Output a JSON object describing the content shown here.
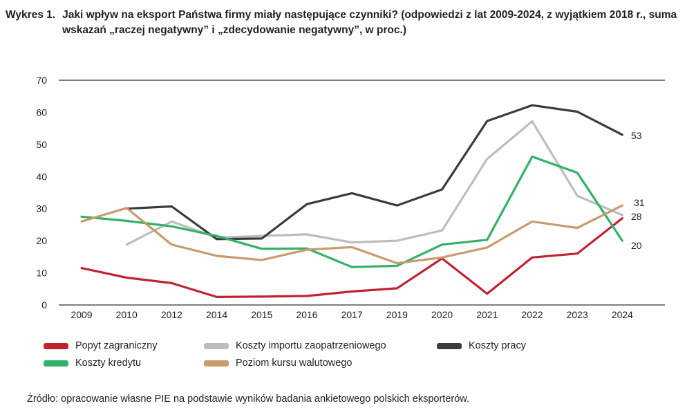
{
  "title": {
    "number": "Wykres 1.",
    "text": "Jaki wpływ na eksport Państwa firmy miały następujące czynniki? (odpowiedzi z lat 2009-2024, z wyjątkiem 2018 r., suma wskazań „raczej negatywny” i „zdecydowanie negatywny”, w proc.)"
  },
  "source": "Źródło: opracowanie własne PIE na podstawie wyników badania ankietowego polskich eksporterów.",
  "chart_data": {
    "type": "line",
    "categories": [
      "2009",
      "2010",
      "2012",
      "2014",
      "2015",
      "2016",
      "2017",
      "2019",
      "2020",
      "2021",
      "2022",
      "2023",
      "2024"
    ],
    "ylim": [
      0,
      70
    ],
    "yticks": [
      "0",
      "10",
      "20",
      "30",
      "40",
      "50",
      "60",
      "70"
    ],
    "grid": "top line only",
    "legend_position": "bottom",
    "series": [
      {
        "name": "Popyt zagraniczny",
        "color": "#c0232f",
        "values": [
          11.5,
          8.5,
          6.8,
          2.5,
          2.6,
          2.8,
          4.2,
          5.2,
          14.5,
          3.5,
          14.8,
          16,
          27
        ]
      },
      {
        "name": "Koszty importu zaopatrzeniowego",
        "color": "#bdbdbd",
        "values": [
          null,
          18.8,
          26,
          21,
          21.5,
          22,
          19.5,
          20,
          23.2,
          45.5,
          57.2,
          34,
          28
        ]
      },
      {
        "name": "Koszty pracy",
        "color": "#3b3b3b",
        "values": [
          null,
          30,
          30.7,
          20.5,
          20.7,
          31.4,
          34.8,
          31,
          36,
          57.3,
          62.2,
          60.2,
          53
        ]
      },
      {
        "name": "Koszty kredytu",
        "color": "#33b06a",
        "values": [
          27.5,
          26.2,
          24.5,
          21.5,
          17.5,
          17.6,
          11.8,
          12.2,
          18.8,
          20.3,
          46.2,
          41.2,
          20
        ]
      },
      {
        "name": "Poziom kursu walutowego",
        "color": "#c89b6d",
        "values": [
          26,
          30.2,
          18.8,
          15.3,
          14,
          17.2,
          18,
          13,
          14.8,
          17.9,
          26,
          24,
          31
        ]
      }
    ],
    "end_labels": [
      {
        "series": "Koszty pracy",
        "text": "53"
      },
      {
        "series": "Poziom kursu walutowego",
        "text": "31"
      },
      {
        "series": "Koszty importu zaopatrzeniowego",
        "text": "28"
      },
      {
        "series": "Koszty kredytu",
        "text": "20"
      }
    ]
  }
}
